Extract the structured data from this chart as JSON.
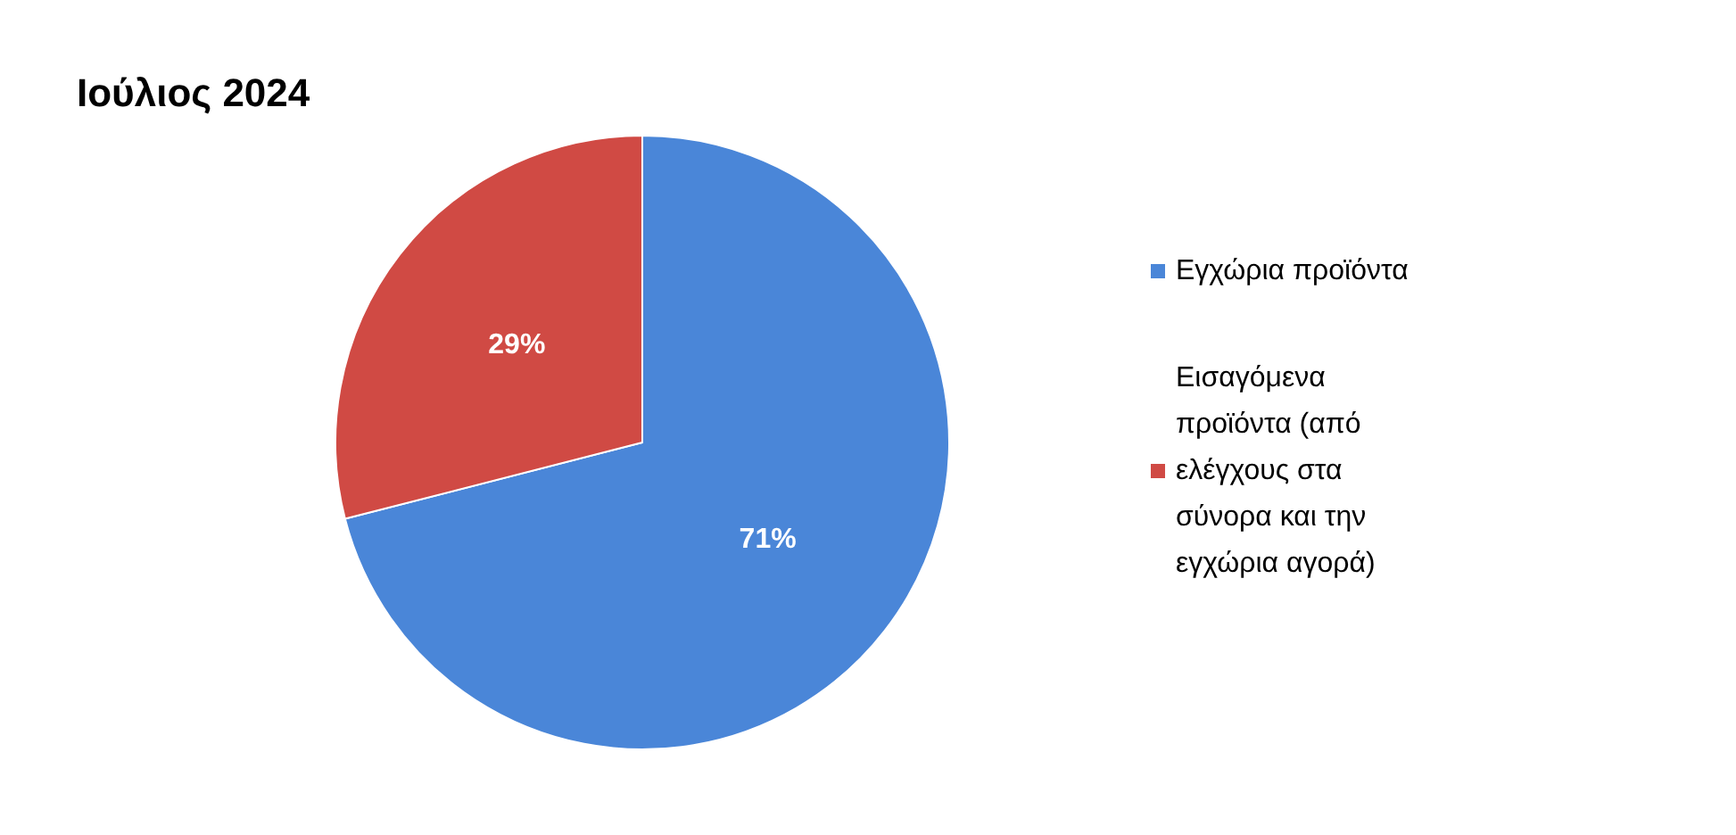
{
  "chart_data": {
    "type": "pie",
    "title": "Ιούλιος 2024",
    "categories": [
      "Εγχώρια προϊόντα",
      "Εισαγόμενα προϊόντα (από ελέγχους στα σύνορα και την εγχώρια αγορά)"
    ],
    "values": [
      71,
      29
    ],
    "colors": [
      "#4a86d8",
      "#d04a44"
    ],
    "value_labels": [
      "71%",
      "29%"
    ],
    "legend": "right"
  }
}
